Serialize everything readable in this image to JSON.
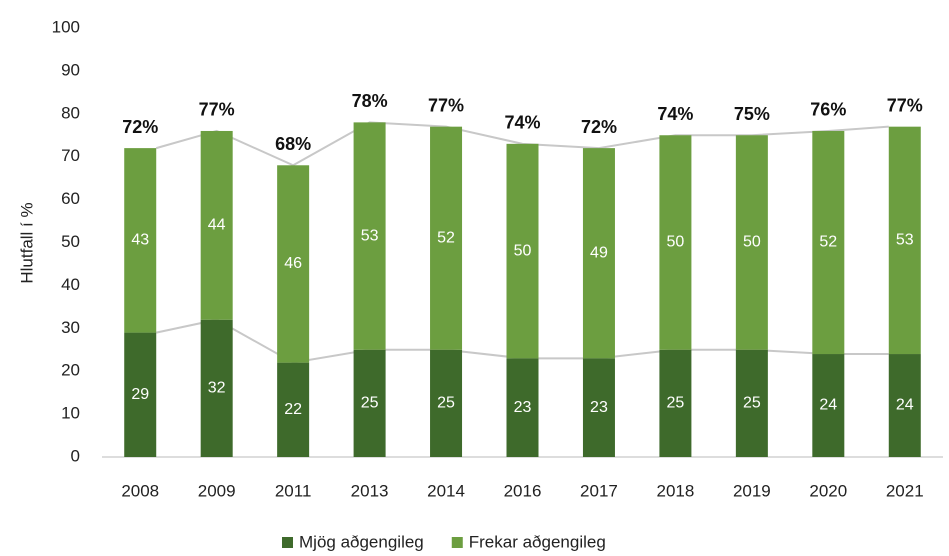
{
  "chart_data": {
    "type": "stacked_bar",
    "y_label": "Hlutfall í %",
    "categories": [
      "2008",
      "2009",
      "2011",
      "2013",
      "2014",
      "2016",
      "2017",
      "2018",
      "2019",
      "2020",
      "2021"
    ],
    "series": [
      {
        "name": "Mjög aðgengileg",
        "color": "#3e6a2b",
        "values": [
          29,
          32,
          22,
          25,
          25,
          23,
          23,
          25,
          25,
          24,
          24
        ]
      },
      {
        "name": "Frekar aðgengileg",
        "color": "#6c9e40",
        "values": [
          43,
          44,
          46,
          53,
          52,
          50,
          49,
          50,
          50,
          52,
          53
        ]
      }
    ],
    "total_labels": [
      "72%",
      "77%",
      "68%",
      "78%",
      "77%",
      "74%",
      "72%",
      "74%",
      "75%",
      "76%",
      "77%"
    ],
    "ylim": [
      0,
      100
    ],
    "yticks": [
      0,
      10,
      20,
      30,
      40,
      50,
      60,
      70,
      80,
      90,
      100
    ],
    "connector_lines": true,
    "legend": "bottom"
  }
}
